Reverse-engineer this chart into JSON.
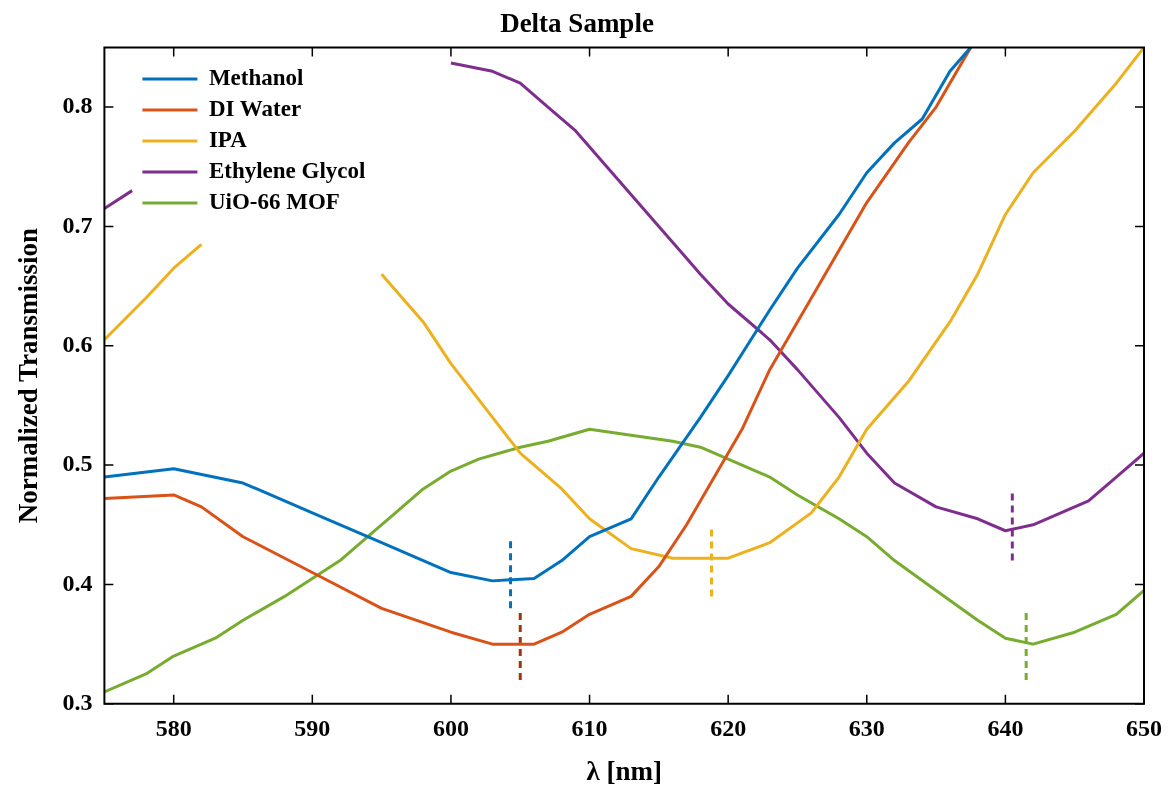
{
  "chart_data": {
    "type": "line",
    "title": "Delta Sample",
    "xlabel": "λ [nm]",
    "ylabel": "Normalized Transmission",
    "xlim": [
      575,
      650
    ],
    "xticks": [
      580,
      590,
      600,
      610,
      620,
      630,
      640,
      650
    ],
    "ylim": [
      0.3,
      0.85
    ],
    "yticks": [
      0.3,
      0.4,
      0.5,
      0.6,
      0.7,
      0.8
    ],
    "grid": false,
    "legend": "top left",
    "marker": "none",
    "line_style": "solid",
    "series": [
      {
        "name": "Methanol",
        "color": "#0072bd",
        "x": [
          575,
          580,
          585,
          590,
          595,
          600,
          603,
          606,
          608,
          610,
          613,
          615,
          618,
          620,
          623,
          625,
          628,
          630,
          632,
          634,
          636,
          637.5
        ],
        "values": [
          0.49,
          0.497,
          0.485,
          0.46,
          0.435,
          0.41,
          0.403,
          0.405,
          0.42,
          0.44,
          0.455,
          0.49,
          0.54,
          0.575,
          0.63,
          0.665,
          0.71,
          0.745,
          0.77,
          0.79,
          0.83,
          0.85
        ]
      },
      {
        "name": "DI Water",
        "color": "#d95319",
        "x": [
          575,
          580,
          582,
          585,
          590,
          595,
          600,
          603,
          606,
          608,
          610,
          613,
          615,
          617,
          619,
          621,
          623,
          625,
          628,
          630,
          633,
          635,
          637.5
        ],
        "values": [
          0.472,
          0.475,
          0.465,
          0.44,
          0.41,
          0.38,
          0.36,
          0.35,
          0.35,
          0.36,
          0.375,
          0.39,
          0.415,
          0.45,
          0.49,
          0.53,
          0.58,
          0.62,
          0.68,
          0.72,
          0.77,
          0.8,
          0.85
        ]
      },
      {
        "name": "IPA",
        "color": "#edb120",
        "x": [
          575,
          578,
          580,
          582,
          588,
          595,
          598,
          600,
          603,
          605,
          608,
          610,
          613,
          616,
          620,
          623,
          626,
          628,
          630,
          633,
          636,
          638,
          640,
          642,
          645,
          648,
          650
        ],
        "values": [
          0.605,
          0.64,
          0.665,
          0.685,
          null,
          0.66,
          0.62,
          0.585,
          0.54,
          0.51,
          0.48,
          0.455,
          0.43,
          0.422,
          0.422,
          0.435,
          0.46,
          0.49,
          0.53,
          0.57,
          0.62,
          0.66,
          0.71,
          0.745,
          0.78,
          0.82,
          0.85
        ]
      },
      {
        "name": "Ethylene Glycol",
        "color": "#7e2f8e",
        "x": [
          575,
          577,
          588,
          600,
          603,
          605,
          607,
          609,
          612,
          615,
          618,
          620,
          623,
          625,
          628,
          630,
          632,
          635,
          638,
          640,
          642,
          644,
          646,
          648,
          650
        ],
        "values": [
          0.715,
          0.73,
          null,
          0.837,
          0.83,
          0.82,
          0.8,
          0.78,
          0.74,
          0.7,
          0.66,
          0.635,
          0.605,
          0.58,
          0.54,
          0.51,
          0.485,
          0.465,
          0.455,
          0.445,
          0.45,
          0.46,
          0.47,
          0.49,
          0.51
        ]
      },
      {
        "name": "UiO-66 MOF",
        "color": "#77ac30",
        "x": [
          575,
          578,
          580,
          583,
          585,
          588,
          590,
          592,
          594,
          596,
          598,
          600,
          602,
          605,
          607,
          610,
          613,
          616,
          618,
          620,
          623,
          625,
          628,
          630,
          632,
          635,
          638,
          640,
          642,
          645,
          648,
          650
        ],
        "values": [
          0.31,
          0.325,
          0.34,
          0.355,
          0.37,
          0.39,
          0.405,
          0.42,
          0.44,
          0.46,
          0.48,
          0.495,
          0.505,
          0.515,
          0.52,
          0.53,
          0.525,
          0.52,
          0.515,
          0.505,
          0.49,
          0.475,
          0.455,
          0.44,
          0.42,
          0.395,
          0.37,
          0.355,
          0.35,
          0.36,
          0.375,
          0.395
        ]
      },
      {
        "color": "#0072bd",
        "line_style": "dashed",
        "x": [
          604.3,
          604.3
        ],
        "values": [
          0.38,
          0.44
        ]
      },
      {
        "color": "#a2330f",
        "line_style": "dashed",
        "x": [
          605,
          605
        ],
        "values": [
          0.32,
          0.38
        ]
      },
      {
        "color": "#edb120",
        "line_style": "dashed",
        "x": [
          618.8,
          618.8
        ],
        "values": [
          0.39,
          0.45
        ]
      },
      {
        "color": "#7e2f8e",
        "line_style": "dashed",
        "x": [
          640.5,
          640.5
        ],
        "values": [
          0.42,
          0.48
        ]
      },
      {
        "color": "#77ac30",
        "line_style": "dashed",
        "x": [
          641.5,
          641.5
        ],
        "values": [
          0.32,
          0.38
        ]
      }
    ]
  }
}
